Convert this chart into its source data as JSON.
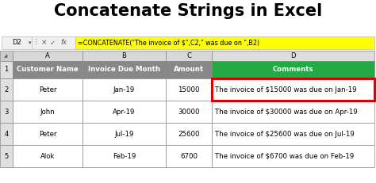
{
  "title": "Concatenate Strings in Excel",
  "title_fontsize": 15,
  "title_fontweight": "bold",
  "formula_bar_cell": "D2",
  "formula_bar_formula": "=CONCATENATE(\"The invoice of $\",C2,\" was due on \",B2)",
  "formula_bar_bg": "#FFFF00",
  "col_letters": [
    "A",
    "B",
    "C",
    "D"
  ],
  "header_row": [
    "Customer Name",
    "Invoice Due Month",
    "Amount",
    "Comments"
  ],
  "header_bg": "#888888",
  "header_d_bg": "#22AA44",
  "header_text_color": "#FFFFFF",
  "rows": [
    [
      "Peter",
      "Jan-19",
      "15000",
      "The invoice of $15000 was due on Jan-19"
    ],
    [
      "John",
      "Apr-19",
      "30000",
      "The invoice of $30000 was due on Apr-19"
    ],
    [
      "Peter",
      "Jul-19",
      "25600",
      "The invoice of $25600 was due on Jul-19"
    ],
    [
      "Alok",
      "Feb-19",
      "6700",
      "The invoice of $6700 was due on Feb-19"
    ]
  ],
  "highlight_color": "#DD0000",
  "cell_bg": "#FFFFFF",
  "grid_color": "#888888",
  "text_color": "#000000",
  "row_num_bg": "#E0E0E0",
  "figure_bg": "#FFFFFF",
  "col_header_bg": "#E0E0E0",
  "col_header_text": "#000000"
}
